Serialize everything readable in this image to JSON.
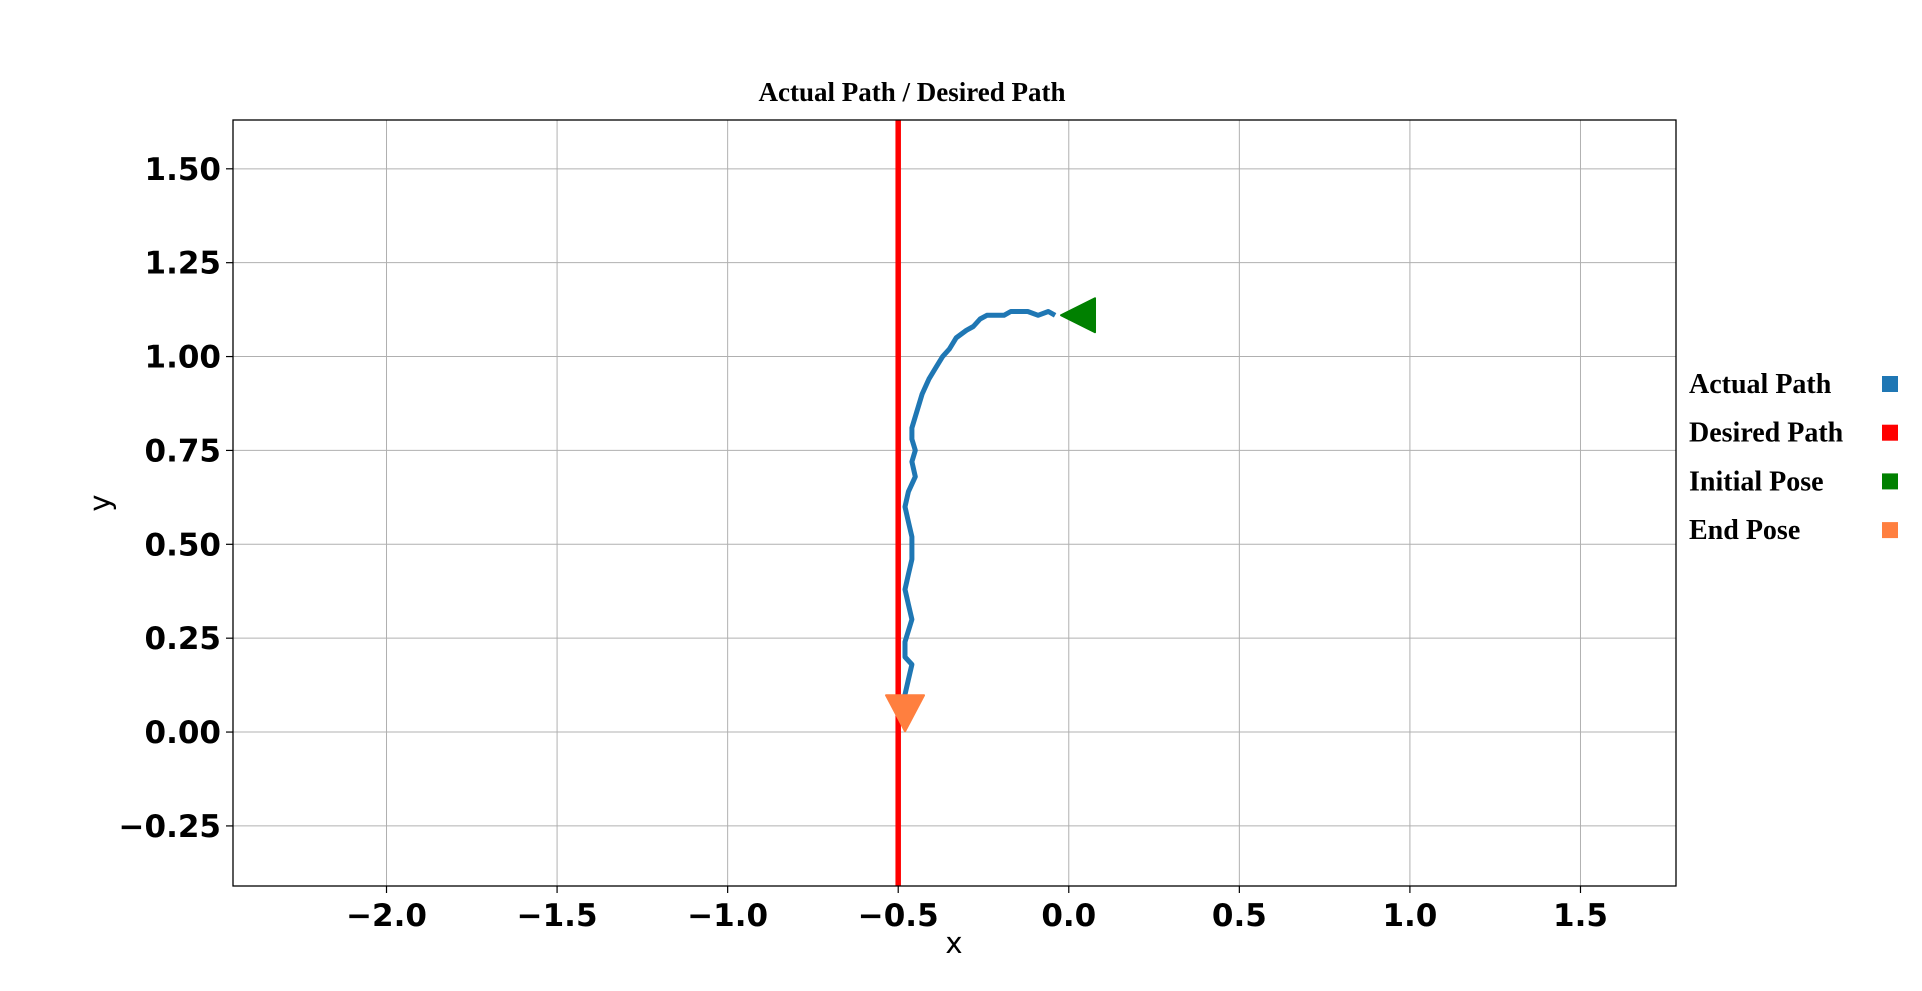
{
  "chart_data": {
    "type": "line",
    "title": "Actual Path / Desired Path",
    "xlabel": "x",
    "ylabel": "y",
    "xlim": [
      -2.45,
      1.78
    ],
    "ylim": [
      -0.41,
      1.63
    ],
    "xticks": [
      -2.0,
      -1.5,
      -1.0,
      -0.5,
      0.0,
      0.5,
      1.0,
      1.5
    ],
    "xtick_labels": [
      "−2.0",
      "−1.5",
      "−1.0",
      "−0.5",
      "0.0",
      "0.5",
      "1.0",
      "1.5"
    ],
    "yticks": [
      -0.25,
      0.0,
      0.25,
      0.5,
      0.75,
      1.0,
      1.25,
      1.5
    ],
    "ytick_labels": [
      "−0.25",
      "0.00",
      "0.25",
      "0.50",
      "0.75",
      "1.00",
      "1.25",
      "1.50"
    ],
    "grid": true,
    "legend_position": "right",
    "series": [
      {
        "name": "Actual Path",
        "color": "#1f77b4",
        "x": [
          -0.04,
          -0.06,
          -0.09,
          -0.12,
          -0.15,
          -0.17,
          -0.19,
          -0.21,
          -0.24,
          -0.26,
          -0.28,
          -0.3,
          -0.33,
          -0.35,
          -0.37,
          -0.39,
          -0.41,
          -0.43,
          -0.44,
          -0.45,
          -0.46,
          -0.46,
          -0.45,
          -0.46,
          -0.45,
          -0.47,
          -0.48,
          -0.47,
          -0.46,
          -0.46,
          -0.47,
          -0.48,
          -0.47,
          -0.46,
          -0.47,
          -0.48,
          -0.48,
          -0.46,
          -0.47,
          -0.48,
          -0.48,
          -0.48
        ],
        "y": [
          1.11,
          1.12,
          1.11,
          1.12,
          1.12,
          1.12,
          1.11,
          1.11,
          1.11,
          1.1,
          1.08,
          1.07,
          1.05,
          1.02,
          1.0,
          0.97,
          0.94,
          0.9,
          0.87,
          0.84,
          0.81,
          0.78,
          0.75,
          0.72,
          0.68,
          0.64,
          0.6,
          0.56,
          0.52,
          0.46,
          0.42,
          0.38,
          0.34,
          0.3,
          0.27,
          0.24,
          0.2,
          0.18,
          0.14,
          0.1,
          0.06,
          0.02
        ]
      },
      {
        "name": "Desired Path",
        "color": "#ff0000",
        "x": [
          -0.5,
          -0.5
        ],
        "y": [
          -0.41,
          1.63
        ]
      }
    ],
    "markers": [
      {
        "name": "Initial Pose",
        "color": "#008000",
        "x": 0.03,
        "y": 1.11,
        "shape": "left-triangle"
      },
      {
        "name": "End Pose",
        "color": "#ff7f3f",
        "x": -0.48,
        "y": 0.05,
        "shape": "down-triangle"
      }
    ]
  }
}
